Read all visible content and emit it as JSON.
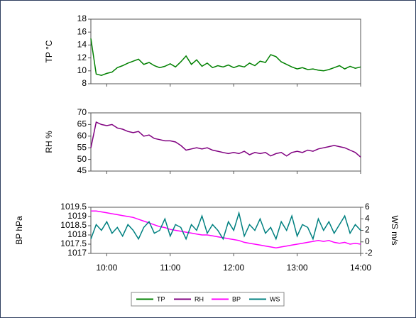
{
  "chart_data": {
    "type": "line",
    "x": [
      "09:45",
      "09:50",
      "09:55",
      "10:00",
      "10:05",
      "10:10",
      "10:15",
      "10:20",
      "10:25",
      "10:30",
      "10:35",
      "10:40",
      "10:45",
      "10:50",
      "10:55",
      "11:00",
      "11:05",
      "11:10",
      "11:15",
      "11:20",
      "11:25",
      "11:30",
      "11:35",
      "11:40",
      "11:45",
      "11:50",
      "11:55",
      "12:00",
      "12:05",
      "12:10",
      "12:15",
      "12:20",
      "12:25",
      "12:30",
      "12:35",
      "12:40",
      "12:45",
      "12:50",
      "12:55",
      "13:00",
      "13:05",
      "13:10",
      "13:15",
      "13:20",
      "13:25",
      "13:30",
      "13:35",
      "13:40",
      "13:45",
      "13:50",
      "13:55",
      "14:00"
    ],
    "xlim": [
      "09:45",
      "14:00"
    ],
    "xticks": [
      "10:00",
      "11:00",
      "12:00",
      "13:00",
      "14:00"
    ],
    "legend": "bottom",
    "panels": [
      {
        "ylabel": "TP °C",
        "ylim": [
          8,
          18
        ],
        "yticks": [
          8,
          10,
          12,
          14,
          16,
          18
        ],
        "series": [
          {
            "name": "TP",
            "color": "#008000",
            "values": [
              15,
              9.5,
              9.3,
              9.6,
              9.8,
              10.5,
              10.8,
              11.2,
              11.5,
              11.8,
              11,
              11.3,
              10.8,
              10.5,
              10.7,
              11.1,
              10.6,
              11.4,
              12.3,
              11,
              11.7,
              10.7,
              11.2,
              10.5,
              10.8,
              10.6,
              10.9,
              10.5,
              10.8,
              10.6,
              11.2,
              10.8,
              11.5,
              11.3,
              12.5,
              12.2,
              11.4,
              11.0,
              10.6,
              10.3,
              10.5,
              10.2,
              10.3,
              10.1,
              10.0,
              10.2,
              10.5,
              10.8,
              10.3,
              10.7,
              10.4,
              10.6
            ]
          }
        ]
      },
      {
        "ylabel": "RH %",
        "ylim": [
          45,
          70
        ],
        "yticks": [
          45,
          50,
          55,
          60,
          65,
          70
        ],
        "series": [
          {
            "name": "RH",
            "color": "#800080",
            "values": [
              55,
              66,
              65,
              64.5,
              65,
              63.5,
              63,
              62,
              61.5,
              62,
              60,
              60.5,
              59,
              58.5,
              58,
              58,
              57.5,
              56,
              54,
              54.5,
              55,
              54.5,
              55,
              54,
              53.5,
              53,
              52.5,
              53,
              52.5,
              53.5,
              52,
              53,
              52.5,
              53,
              51.5,
              52.5,
              53,
              51.5,
              53,
              53.5,
              53,
              54,
              53.5,
              54.5,
              55,
              55.5,
              56,
              55.5,
              55,
              54,
              53,
              51
            ]
          }
        ]
      },
      {
        "ylabel": "BP hPa",
        "y2label": "WS m/s",
        "ylim": [
          1017,
          1019.5
        ],
        "yticks": [
          1017,
          1017.5,
          1018,
          1018.5,
          1019,
          1019.5
        ],
        "y2lim": [
          -2,
          6
        ],
        "y2ticks": [
          -2,
          0,
          2,
          4,
          6
        ],
        "series": [
          {
            "name": "BP",
            "color": "#ff00ff",
            "values": [
              1019.3,
              1019.3,
              1019.25,
              1019.2,
              1019.15,
              1019.1,
              1019.05,
              1019.0,
              1018.95,
              1018.85,
              1018.75,
              1018.65,
              1018.55,
              1018.45,
              1018.4,
              1018.3,
              1018.25,
              1018.2,
              1018.15,
              1018.1,
              1018.05,
              1018.0,
              1018.0,
              1017.95,
              1017.9,
              1017.85,
              1017.8,
              1017.75,
              1017.7,
              1017.6,
              1017.55,
              1017.5,
              1017.45,
              1017.4,
              1017.35,
              1017.3,
              1017.35,
              1017.4,
              1017.45,
              1017.5,
              1017.55,
              1017.6,
              1017.65,
              1017.7,
              1017.65,
              1017.7,
              1017.6,
              1017.55,
              1017.6,
              1017.5,
              1017.55,
              1017.5
            ]
          },
          {
            "name": "WS",
            "color": "#008080",
            "axis": "y2",
            "values": [
              0.5,
              3,
              2,
              3.5,
              1.5,
              2.5,
              1,
              3,
              2,
              0.5,
              2.5,
              3.5,
              1.5,
              2,
              4,
              1,
              3,
              2.5,
              0.5,
              3,
              2,
              4.5,
              1.5,
              3,
              2,
              0.5,
              3.5,
              2,
              5,
              1,
              3,
              2,
              4,
              1.5,
              2.5,
              0.5,
              3.5,
              2,
              4.5,
              1,
              3,
              2.5,
              0.5,
              4,
              2,
              3.5,
              1.5,
              3,
              4.5,
              1.5,
              3,
              2
            ]
          }
        ]
      }
    ]
  }
}
